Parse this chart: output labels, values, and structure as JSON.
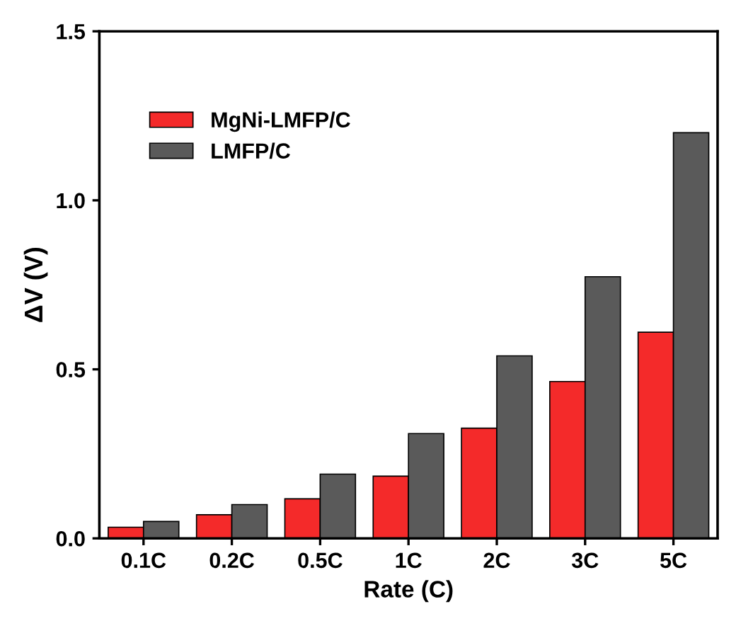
{
  "chart_data": {
    "type": "bar",
    "xlabel": "Rate (C)",
    "ylabel": "ΔV (V)",
    "categories": [
      "0.1C",
      "0.2C",
      "0.5C",
      "1C",
      "2C",
      "3C",
      "5C"
    ],
    "series": [
      {
        "name": "MgNi-LMFP/C",
        "color": "#f42a2a",
        "values": [
          0.033,
          0.07,
          0.117,
          0.184,
          0.326,
          0.464,
          0.61
        ]
      },
      {
        "name": "LMFP/C",
        "color": "#5a5a5a",
        "values": [
          0.05,
          0.1,
          0.19,
          0.31,
          0.54,
          0.774,
          1.2
        ]
      }
    ],
    "ylim": [
      0,
      1.5
    ],
    "yticks": [
      {
        "value": 0,
        "label": "0.0"
      },
      0.5,
      {
        "value": 1,
        "label": "1.0"
      },
      1.5
    ],
    "legend": "top left",
    "grid": false
  }
}
